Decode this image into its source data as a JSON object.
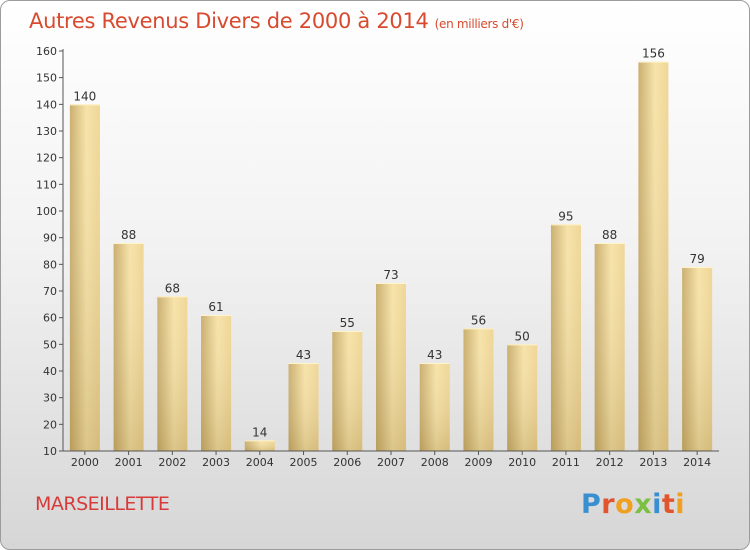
{
  "header": {
    "title": "Autres Revenus Divers de 2000 à 2014",
    "unit": "(en milliers d'€)"
  },
  "footer": {
    "place": "MARSEILLETTE",
    "logo": "Proxiti"
  },
  "colors": {
    "title": "#d84a2f",
    "place": "#d83a3a",
    "bar_light": "#f5dfa0",
    "bar_dark": "#c9ad6c",
    "logo": [
      "#3a8fd0",
      "#e2542d",
      "#f0a020",
      "#7bc043",
      "#3a8fd0",
      "#e2542d",
      "#f0a020"
    ]
  },
  "chart_data": {
    "type": "bar",
    "title": "Autres Revenus Divers de 2000 à 2014",
    "subtitle": "(en milliers d'€)",
    "xlabel": "",
    "ylabel": "",
    "categories": [
      "2000",
      "2001",
      "2002",
      "2003",
      "2004",
      "2005",
      "2006",
      "2007",
      "2008",
      "2009",
      "2010",
      "2011",
      "2012",
      "2013",
      "2014"
    ],
    "values": [
      140,
      88,
      68,
      61,
      14,
      43,
      55,
      73,
      43,
      56,
      50,
      95,
      88,
      156,
      79
    ],
    "ylim": [
      10,
      160
    ],
    "yticks": [
      10,
      20,
      30,
      40,
      50,
      60,
      70,
      80,
      90,
      100,
      110,
      120,
      130,
      140,
      150,
      160
    ],
    "grid": false,
    "data_labels": true
  }
}
